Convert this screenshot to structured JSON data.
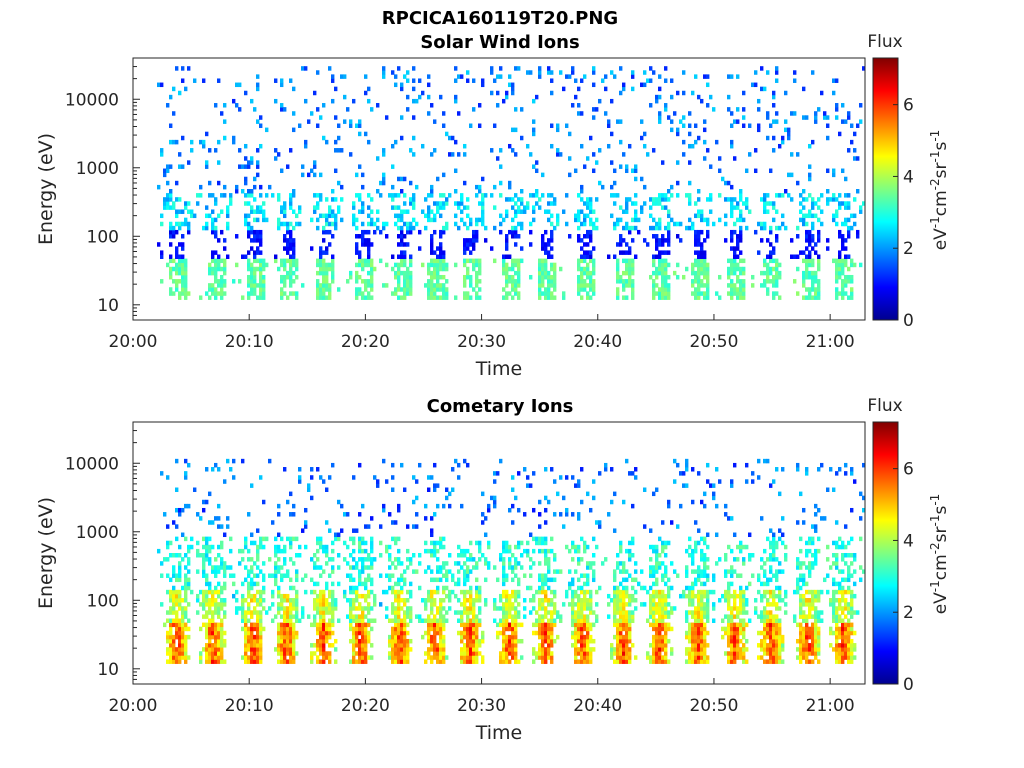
{
  "figure_title": "RPCICA160119T20.PNG",
  "chart_data": [
    {
      "type": "heatmap",
      "title": "Solar Wind Ions",
      "xlabel": "Time",
      "ylabel": "Energy (eV)",
      "x_ticks": [
        "20:00",
        "20:10",
        "20:20",
        "20:30",
        "20:40",
        "20:50",
        "21:00"
      ],
      "xlim": [
        "20:00",
        "21:03"
      ],
      "y_scale": "log",
      "y_ticks": [
        "10",
        "100",
        "1000",
        "10000"
      ],
      "ylim": [
        6,
        40000
      ],
      "colorbar": {
        "title": "Flux",
        "label": "eV-1cm-2sr-1s-1",
        "ticks": [
          "0",
          "2",
          "4",
          "6"
        ],
        "range": [
          0,
          7.3
        ],
        "colormap": "jet"
      },
      "burst_times_min": [
        3.8,
        7.2,
        10.5,
        13.4,
        16.6,
        19.8,
        23.3,
        26.2,
        29.1,
        32.5,
        35.6,
        38.9,
        42.4,
        45.5,
        48.8,
        51.9,
        55.0,
        58.4,
        61.2
      ],
      "bands": [
        {
          "e_lo": 12,
          "e_hi": 45,
          "flux": 3.4,
          "note": "green patches at each burst"
        },
        {
          "e_lo": 20,
          "e_hi": 120,
          "flux": 1.0,
          "note": "dark-blue streaks"
        },
        {
          "e_lo": 100,
          "e_hi": 400,
          "flux": 2.5,
          "note": "cyan speckle"
        },
        {
          "e_lo": 400,
          "e_hi": 30000,
          "flux": 1.8,
          "note": "sparse blue speckle"
        }
      ]
    },
    {
      "type": "heatmap",
      "title": "Cometary Ions",
      "xlabel": "Time",
      "ylabel": "Energy (eV)",
      "x_ticks": [
        "20:00",
        "20:10",
        "20:20",
        "20:30",
        "20:40",
        "20:50",
        "21:00"
      ],
      "xlim": [
        "20:00",
        "21:03"
      ],
      "y_scale": "log",
      "y_ticks": [
        "10",
        "100",
        "1000",
        "10000"
      ],
      "ylim": [
        6,
        40000
      ],
      "colorbar": {
        "title": "Flux",
        "label": "eV-1cm-2sr-1s-1",
        "ticks": [
          "0",
          "2",
          "4",
          "6"
        ],
        "range": [
          0,
          7.3
        ],
        "colormap": "jet"
      },
      "burst_times_min": [
        3.8,
        6.9,
        10.3,
        13.2,
        16.4,
        19.6,
        23.0,
        26.0,
        29.0,
        32.4,
        35.5,
        38.7,
        42.2,
        45.3,
        48.6,
        51.8,
        54.9,
        58.1,
        61.1
      ],
      "bands": [
        {
          "e_lo": 12,
          "e_hi": 45,
          "flux": 5.9,
          "note": "orange/red core at each burst"
        },
        {
          "e_lo": 45,
          "e_hi": 150,
          "flux": 4.6,
          "note": "yellow shoulder"
        },
        {
          "e_lo": 150,
          "e_hi": 900,
          "flux": 3.0,
          "note": "cyan/green plumes"
        },
        {
          "e_lo": 900,
          "e_hi": 12000,
          "flux": 1.7,
          "note": "sparse blue speckle"
        }
      ]
    }
  ]
}
